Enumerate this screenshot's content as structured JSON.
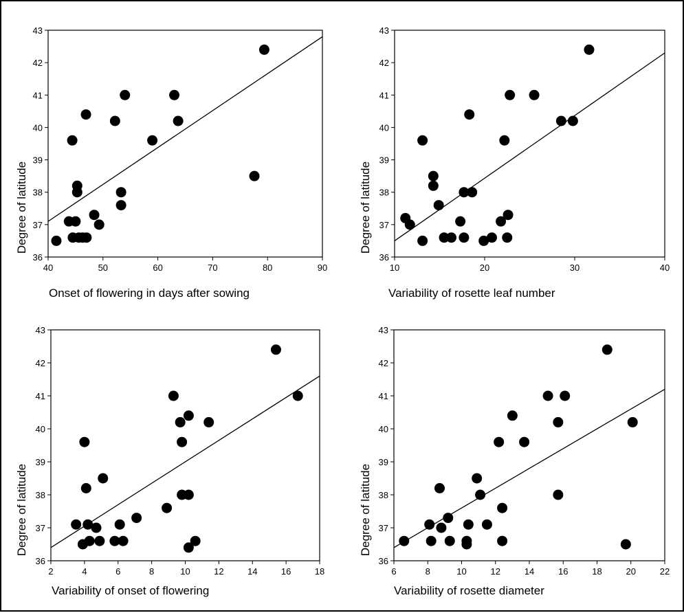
{
  "chart_data": [
    {
      "type": "scatter",
      "xlabel": "Onset of flowering in days after sowing",
      "ylabel": "Degree of latitude",
      "xlim": [
        40,
        90
      ],
      "ylim": [
        36,
        43
      ],
      "xticks": [
        40,
        50,
        60,
        70,
        80,
        90
      ],
      "yticks": [
        36,
        37,
        38,
        39,
        40,
        41,
        42,
        43
      ],
      "grid": false,
      "points": [
        {
          "x": 41.5,
          "y": 36.5
        },
        {
          "x": 43.8,
          "y": 37.1
        },
        {
          "x": 45.0,
          "y": 37.1
        },
        {
          "x": 44.5,
          "y": 36.6
        },
        {
          "x": 45.6,
          "y": 36.6
        },
        {
          "x": 46.3,
          "y": 36.6
        },
        {
          "x": 47.0,
          "y": 36.6
        },
        {
          "x": 45.3,
          "y": 38.0
        },
        {
          "x": 45.3,
          "y": 38.2
        },
        {
          "x": 44.4,
          "y": 39.6
        },
        {
          "x": 46.9,
          "y": 40.4
        },
        {
          "x": 48.4,
          "y": 37.3
        },
        {
          "x": 49.3,
          "y": 37.0
        },
        {
          "x": 52.2,
          "y": 40.2
        },
        {
          "x": 53.3,
          "y": 38.0
        },
        {
          "x": 53.3,
          "y": 37.6
        },
        {
          "x": 54.0,
          "y": 41.0
        },
        {
          "x": 59.0,
          "y": 39.6
        },
        {
          "x": 63.0,
          "y": 41.0
        },
        {
          "x": 63.7,
          "y": 40.2
        },
        {
          "x": 77.6,
          "y": 38.5
        },
        {
          "x": 79.4,
          "y": 42.4
        }
      ],
      "trendline": [
        [
          40,
          37.1
        ],
        [
          90,
          42.8
        ]
      ]
    },
    {
      "type": "scatter",
      "xlabel": "Variability of rosette leaf number",
      "ylabel": "Degree of latitude",
      "xlim": [
        10,
        40
      ],
      "ylim": [
        36,
        43
      ],
      "xticks": [
        10,
        20,
        30,
        40
      ],
      "yticks": [
        36,
        37,
        38,
        39,
        40,
        41,
        42,
        43
      ],
      "grid": false,
      "points": [
        {
          "x": 11.2,
          "y": 37.2
        },
        {
          "x": 11.7,
          "y": 37.0
        },
        {
          "x": 13.1,
          "y": 36.5
        },
        {
          "x": 13.1,
          "y": 39.6
        },
        {
          "x": 14.3,
          "y": 38.5
        },
        {
          "x": 14.3,
          "y": 38.2
        },
        {
          "x": 14.9,
          "y": 37.6
        },
        {
          "x": 15.5,
          "y": 36.6
        },
        {
          "x": 16.3,
          "y": 36.6
        },
        {
          "x": 17.3,
          "y": 37.1
        },
        {
          "x": 17.7,
          "y": 36.6
        },
        {
          "x": 17.7,
          "y": 38.0
        },
        {
          "x": 18.3,
          "y": 40.4
        },
        {
          "x": 18.6,
          "y": 38.0
        },
        {
          "x": 19.9,
          "y": 36.5
        },
        {
          "x": 20.8,
          "y": 36.6
        },
        {
          "x": 21.8,
          "y": 37.1
        },
        {
          "x": 22.2,
          "y": 39.6
        },
        {
          "x": 22.5,
          "y": 36.6
        },
        {
          "x": 22.6,
          "y": 37.3
        },
        {
          "x": 22.8,
          "y": 41.0
        },
        {
          "x": 25.5,
          "y": 41.0
        },
        {
          "x": 28.5,
          "y": 40.2
        },
        {
          "x": 29.8,
          "y": 40.2
        },
        {
          "x": 31.6,
          "y": 42.4
        }
      ],
      "trendline": [
        [
          10,
          36.5
        ],
        [
          40,
          42.3
        ]
      ]
    },
    {
      "type": "scatter",
      "xlabel": "Variability of onset of flowering",
      "ylabel": "Degree of latitude",
      "xlim": [
        2,
        18
      ],
      "ylim": [
        36,
        43
      ],
      "xticks": [
        2,
        4,
        6,
        8,
        10,
        12,
        14,
        16,
        18
      ],
      "yticks": [
        36,
        37,
        38,
        39,
        40,
        41,
        42,
        43
      ],
      "grid": false,
      "points": [
        {
          "x": 3.5,
          "y": 37.1
        },
        {
          "x": 3.9,
          "y": 36.5
        },
        {
          "x": 4.0,
          "y": 39.6
        },
        {
          "x": 4.1,
          "y": 38.2
        },
        {
          "x": 4.2,
          "y": 37.1
        },
        {
          "x": 4.3,
          "y": 36.6
        },
        {
          "x": 4.7,
          "y": 37.0
        },
        {
          "x": 4.9,
          "y": 36.6
        },
        {
          "x": 5.1,
          "y": 38.5
        },
        {
          "x": 5.8,
          "y": 36.6
        },
        {
          "x": 6.1,
          "y": 37.1
        },
        {
          "x": 6.3,
          "y": 36.6
        },
        {
          "x": 7.1,
          "y": 37.3
        },
        {
          "x": 8.9,
          "y": 37.6
        },
        {
          "x": 9.3,
          "y": 41.0
        },
        {
          "x": 9.7,
          "y": 40.2
        },
        {
          "x": 9.8,
          "y": 39.6
        },
        {
          "x": 9.8,
          "y": 38.0
        },
        {
          "x": 10.2,
          "y": 40.4
        },
        {
          "x": 10.2,
          "y": 38.0
        },
        {
          "x": 10.2,
          "y": 36.4
        },
        {
          "x": 10.6,
          "y": 36.6
        },
        {
          "x": 11.4,
          "y": 40.2
        },
        {
          "x": 15.4,
          "y": 42.4
        },
        {
          "x": 16.7,
          "y": 41.0
        }
      ],
      "trendline": [
        [
          2,
          36.4
        ],
        [
          18,
          41.6
        ]
      ]
    },
    {
      "type": "scatter",
      "xlabel": "Variability of rosette diameter",
      "ylabel": "Degree of latitude",
      "xlim": [
        6,
        22
      ],
      "ylim": [
        36,
        43
      ],
      "xticks": [
        6,
        8,
        10,
        12,
        14,
        16,
        18,
        20,
        22
      ],
      "yticks": [
        36,
        37,
        38,
        39,
        40,
        41,
        42,
        43
      ],
      "grid": false,
      "points": [
        {
          "x": 6.6,
          "y": 36.6
        },
        {
          "x": 8.1,
          "y": 37.1
        },
        {
          "x": 8.2,
          "y": 36.6
        },
        {
          "x": 8.7,
          "y": 38.2
        },
        {
          "x": 8.8,
          "y": 37.0
        },
        {
          "x": 9.2,
          "y": 37.3
        },
        {
          "x": 9.3,
          "y": 36.6
        },
        {
          "x": 10.3,
          "y": 36.6
        },
        {
          "x": 10.3,
          "y": 36.5
        },
        {
          "x": 10.4,
          "y": 37.1
        },
        {
          "x": 10.9,
          "y": 38.5
        },
        {
          "x": 11.1,
          "y": 38.0
        },
        {
          "x": 11.5,
          "y": 37.1
        },
        {
          "x": 12.2,
          "y": 39.6
        },
        {
          "x": 12.4,
          "y": 37.6
        },
        {
          "x": 12.4,
          "y": 36.6
        },
        {
          "x": 13.0,
          "y": 40.4
        },
        {
          "x": 13.7,
          "y": 39.6
        },
        {
          "x": 15.1,
          "y": 41.0
        },
        {
          "x": 15.7,
          "y": 40.2
        },
        {
          "x": 15.7,
          "y": 38.0
        },
        {
          "x": 16.1,
          "y": 41.0
        },
        {
          "x": 18.6,
          "y": 42.4
        },
        {
          "x": 19.7,
          "y": 36.5
        },
        {
          "x": 20.1,
          "y": 40.2
        }
      ],
      "trendline": [
        [
          6,
          36.4
        ],
        [
          22,
          41.2
        ]
      ]
    }
  ]
}
